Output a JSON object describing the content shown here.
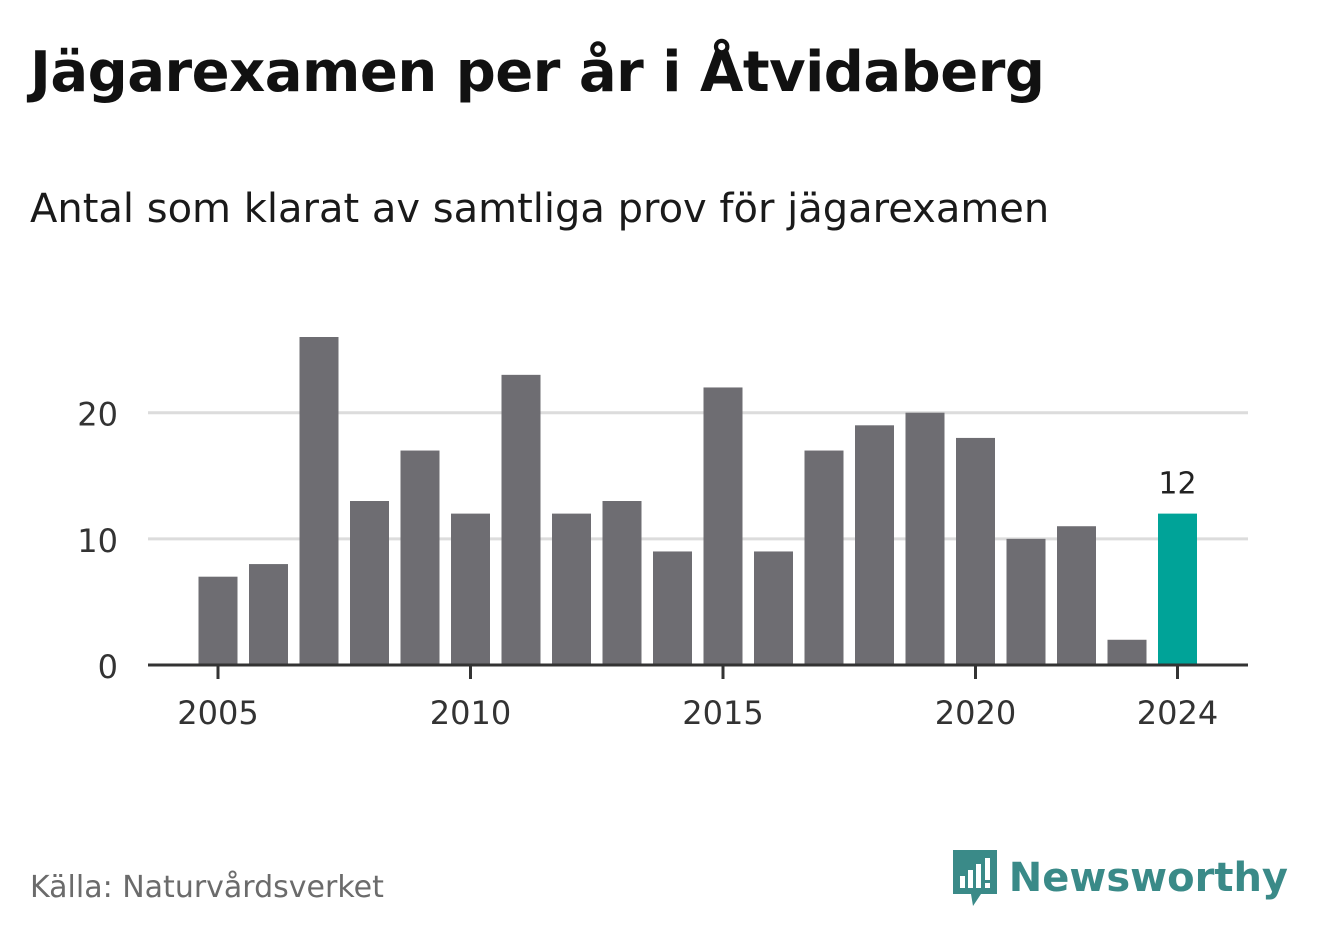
{
  "header": {
    "title": "Jägarexamen per år i Åtvidaberg",
    "subtitle": "Antal som klarat av samtliga prov för jägarexamen"
  },
  "footer": {
    "source": "Källa: Naturvårdsverket",
    "brand": "Newsworthy",
    "brand_icon": "newsworthy-logo-icon",
    "brand_color": "#3a8a88"
  },
  "chart_data": {
    "type": "bar",
    "x": [
      2005,
      2006,
      2007,
      2008,
      2009,
      2010,
      2011,
      2012,
      2013,
      2014,
      2015,
      2016,
      2017,
      2018,
      2019,
      2020,
      2021,
      2022,
      2023,
      2024
    ],
    "values": [
      7,
      8,
      26,
      13,
      17,
      12,
      23,
      12,
      13,
      9,
      22,
      9,
      17,
      19,
      20,
      18,
      10,
      11,
      2,
      12
    ],
    "x_ticks": [
      2005,
      2010,
      2015,
      2020,
      2024
    ],
    "y_ticks": [
      0,
      10,
      20
    ],
    "ylim": [
      0,
      26
    ],
    "grid": true,
    "bar_color": "#6e6d72",
    "highlight": {
      "x": 2024,
      "color": "#00a398",
      "label": "12"
    },
    "xlabel": "",
    "ylabel": ""
  }
}
